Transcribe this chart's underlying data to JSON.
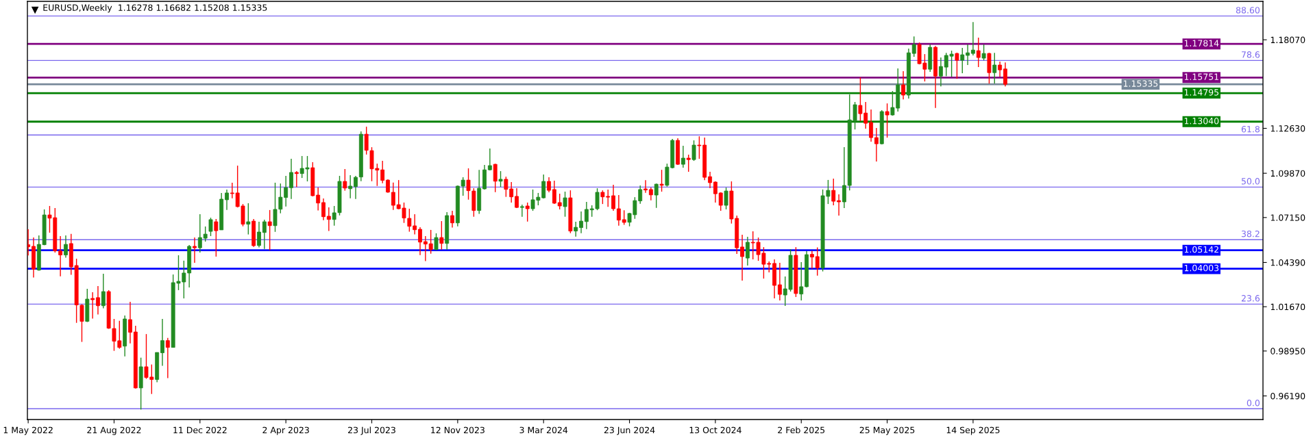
{
  "chart_data": {
    "type": "candlestick",
    "title": "EURUSD,Weekly  1.16278 1.16682 1.15208 1.15335",
    "x": [
      "2022-05-01",
      "2022-05-08",
      "2022-05-15",
      "2022-05-22",
      "2022-05-29",
      "2022-06-05",
      "2022-06-12",
      "2022-06-19",
      "2022-06-26",
      "2022-07-03",
      "2022-07-10",
      "2022-07-17",
      "2022-07-24",
      "2022-07-31",
      "2022-08-07",
      "2022-08-14",
      "2022-08-21",
      "2022-08-28",
      "2022-09-04",
      "2022-09-11",
      "2022-09-18",
      "2022-09-25",
      "2022-10-02",
      "2022-10-09",
      "2022-10-16",
      "2022-10-23",
      "2022-10-30",
      "2022-11-06",
      "2022-11-13",
      "2022-11-20",
      "2022-11-27",
      "2022-12-04",
      "2022-12-11",
      "2022-12-18",
      "2022-12-25",
      "2023-01-01",
      "2023-01-08",
      "2023-01-15",
      "2023-01-22",
      "2023-01-29",
      "2023-02-05",
      "2023-02-12",
      "2023-02-19",
      "2023-02-26",
      "2023-03-05",
      "2023-03-12",
      "2023-03-19",
      "2023-03-26",
      "2023-04-02",
      "2023-04-09",
      "2023-04-16",
      "2023-04-23",
      "2023-04-30",
      "2023-05-07",
      "2023-05-14",
      "2023-05-21",
      "2023-05-28",
      "2023-06-04",
      "2023-06-11",
      "2023-06-18",
      "2023-06-25",
      "2023-07-02",
      "2023-07-09",
      "2023-07-16",
      "2023-07-23",
      "2023-07-30",
      "2023-08-06",
      "2023-08-13",
      "2023-08-20",
      "2023-08-27",
      "2023-09-03",
      "2023-09-10",
      "2023-09-17",
      "2023-09-24",
      "2023-10-01",
      "2023-10-08",
      "2023-10-15",
      "2023-10-22",
      "2023-10-29",
      "2023-11-05",
      "2023-11-12",
      "2023-11-19",
      "2023-11-26",
      "2023-12-03",
      "2023-12-10",
      "2023-12-17",
      "2023-12-24",
      "2023-12-31",
      "2024-01-07",
      "2024-01-14",
      "2024-01-21",
      "2024-01-28",
      "2024-02-04",
      "2024-02-11",
      "2024-02-18",
      "2024-02-25",
      "2024-03-03",
      "2024-03-10",
      "2024-03-17",
      "2024-03-24",
      "2024-03-31",
      "2024-04-07",
      "2024-04-14",
      "2024-04-21",
      "2024-04-28",
      "2024-05-05",
      "2024-05-12",
      "2024-05-19",
      "2024-05-26",
      "2024-06-02",
      "2024-06-09",
      "2024-06-16",
      "2024-06-23",
      "2024-06-30",
      "2024-07-07",
      "2024-07-14",
      "2024-07-21",
      "2024-07-28",
      "2024-08-04",
      "2024-08-11",
      "2024-08-18",
      "2024-08-25",
      "2024-09-01",
      "2024-09-08",
      "2024-09-15",
      "2024-09-22",
      "2024-09-29",
      "2024-10-06",
      "2024-10-13",
      "2024-10-20",
      "2024-10-27",
      "2024-11-03",
      "2024-11-10",
      "2024-11-17",
      "2024-11-24",
      "2024-12-01",
      "2024-12-08",
      "2024-12-15",
      "2024-12-22",
      "2024-12-29",
      "2025-01-05",
      "2025-01-12",
      "2025-01-19",
      "2025-01-26",
      "2025-02-02",
      "2025-02-09",
      "2025-02-16",
      "2025-02-23",
      "2025-03-02",
      "2025-03-09",
      "2025-03-16",
      "2025-03-23",
      "2025-03-30",
      "2025-04-06",
      "2025-04-13",
      "2025-04-20",
      "2025-04-27",
      "2025-05-04",
      "2025-05-11",
      "2025-05-18",
      "2025-05-25",
      "2025-06-01",
      "2025-06-08",
      "2025-06-15",
      "2025-06-22",
      "2025-06-29",
      "2025-07-06",
      "2025-07-13",
      "2025-07-20",
      "2025-07-27",
      "2025-08-03",
      "2025-08-10",
      "2025-08-17",
      "2025-08-24",
      "2025-08-31",
      "2025-09-07",
      "2025-09-14",
      "2025-09-21",
      "2025-09-28",
      "2025-10-05",
      "2025-10-12",
      "2025-10-19",
      "2025-10-26"
    ],
    "ohlc": [
      [
        1.0548,
        1.0643,
        1.0482,
        1.0535
      ],
      [
        1.0538,
        1.0592,
        1.0346,
        1.0398
      ],
      [
        1.0392,
        1.0605,
        1.0388,
        1.055
      ],
      [
        1.0548,
        1.0765,
        1.0545,
        1.0731
      ],
      [
        1.0731,
        1.0786,
        1.0622,
        1.0711
      ],
      [
        1.0714,
        1.0773,
        1.05,
        1.051
      ],
      [
        1.051,
        1.0601,
        1.0354,
        1.0485
      ],
      [
        1.0485,
        1.0605,
        1.0468,
        1.055
      ],
      [
        1.0555,
        1.0614,
        1.0363,
        1.0412
      ],
      [
        1.042,
        1.0462,
        1.0068,
        1.0178
      ],
      [
        1.0176,
        1.0182,
        0.9951,
        1.0077
      ],
      [
        1.0077,
        1.0277,
        1.0073,
        1.0214
      ],
      [
        1.0218,
        1.0256,
        1.0094,
        1.021
      ],
      [
        1.0223,
        1.0294,
        1.0119,
        1.0173
      ],
      [
        1.0173,
        1.037,
        1.0157,
        1.026
      ],
      [
        1.026,
        1.0269,
        1.0031,
        1.0035
      ],
      [
        1.0033,
        1.0092,
        0.9896,
        0.9955
      ],
      [
        0.9958,
        1.008,
        0.9909,
        0.9917
      ],
      [
        0.9925,
        1.0113,
        0.9862,
        1.0092
      ],
      [
        1.0088,
        1.0197,
        0.9942,
        1.001
      ],
      [
        1.0012,
        1.005,
        0.9664,
        0.9668
      ],
      [
        0.9668,
        0.9854,
        0.9535,
        0.9798
      ],
      [
        0.9798,
        0.9999,
        0.9724,
        0.9732
      ],
      [
        0.9735,
        0.9812,
        0.9631,
        0.972
      ],
      [
        0.972,
        0.9886,
        0.9703,
        0.9886
      ],
      [
        0.9884,
        1.0092,
        0.9804,
        0.9959
      ],
      [
        0.9959,
        0.9975,
        0.9728,
        0.9917
      ],
      [
        0.9917,
        1.0365,
        0.9917,
        1.0315
      ],
      [
        1.0311,
        1.0483,
        1.0269,
        1.0323
      ],
      [
        1.0319,
        1.045,
        1.0218,
        1.0374
      ],
      [
        1.0374,
        1.0546,
        1.0285,
        1.0538
      ],
      [
        1.0538,
        1.0592,
        1.0437,
        1.0529
      ],
      [
        1.0529,
        1.0735,
        1.05,
        1.0592
      ],
      [
        1.0588,
        1.066,
        1.0567,
        1.0613
      ],
      [
        1.063,
        1.0714,
        1.0601,
        1.0702
      ],
      [
        1.0689,
        1.0706,
        1.0475,
        1.0634
      ],
      [
        1.0639,
        1.0866,
        1.0639,
        1.0828
      ],
      [
        1.0824,
        1.0887,
        1.0762,
        1.0866
      ],
      [
        1.0866,
        1.0929,
        1.0833,
        1.0862
      ],
      [
        1.0866,
        1.1034,
        1.0777,
        1.0782
      ],
      [
        1.0786,
        1.0798,
        1.0661,
        1.0674
      ],
      [
        1.0674,
        1.0803,
        1.0611,
        1.0689
      ],
      [
        1.0693,
        1.0706,
        1.0535,
        1.0542
      ],
      [
        1.0543,
        1.0689,
        1.0531,
        1.0626
      ],
      [
        1.0623,
        1.0702,
        1.0522,
        1.0689
      ],
      [
        1.0689,
        1.0761,
        1.0514,
        1.0665
      ],
      [
        1.0665,
        1.0929,
        1.0627,
        1.0765
      ],
      [
        1.0766,
        1.0924,
        1.0741,
        1.084
      ],
      [
        1.0838,
        1.0971,
        1.0783,
        1.0899
      ],
      [
        1.0898,
        1.1076,
        1.0829,
        1.0992
      ],
      [
        1.0992,
        1.1,
        1.0903,
        1.0985
      ],
      [
        1.0985,
        1.1093,
        1.0958,
        1.1017
      ],
      [
        1.1013,
        1.1093,
        1.0937,
        1.1021
      ],
      [
        1.1021,
        1.1055,
        1.0845,
        1.0849
      ],
      [
        1.0853,
        1.0899,
        1.0758,
        1.0804
      ],
      [
        1.0807,
        1.0832,
        1.0699,
        1.072
      ],
      [
        1.0723,
        1.0777,
        1.0632,
        1.0703
      ],
      [
        1.0703,
        1.0786,
        1.0665,
        1.0744
      ],
      [
        1.0745,
        1.0971,
        1.0728,
        1.0937
      ],
      [
        1.0937,
        1.1013,
        1.088,
        1.0896
      ],
      [
        1.0892,
        1.0975,
        1.0833,
        1.0908
      ],
      [
        1.0905,
        1.0971,
        1.0829,
        1.0962
      ],
      [
        1.0964,
        1.1244,
        1.0938,
        1.1227
      ],
      [
        1.1227,
        1.1273,
        1.1102,
        1.1128
      ],
      [
        1.1126,
        1.1147,
        1.0938,
        1.1014
      ],
      [
        1.1017,
        1.1046,
        1.0909,
        1.1006
      ],
      [
        1.1008,
        1.1063,
        1.0926,
        1.0943
      ],
      [
        1.0945,
        1.095,
        1.0867,
        1.0871
      ],
      [
        1.087,
        1.093,
        1.0762,
        1.079
      ],
      [
        1.0794,
        1.0945,
        1.0766,
        1.0769
      ],
      [
        1.0773,
        1.0807,
        1.0682,
        1.0712
      ],
      [
        1.071,
        1.0769,
        1.0628,
        1.0661
      ],
      [
        1.0664,
        1.0735,
        1.0611,
        1.064
      ],
      [
        1.0643,
        1.0655,
        1.0484,
        1.0564
      ],
      [
        1.0567,
        1.0601,
        1.0447,
        1.0552
      ],
      [
        1.0554,
        1.0639,
        1.0493,
        1.0518
      ],
      [
        1.0518,
        1.0618,
        1.0514,
        1.0592
      ],
      [
        1.0592,
        1.0693,
        1.0518,
        1.0556
      ],
      [
        1.0556,
        1.0748,
        1.0518,
        1.0727
      ],
      [
        1.0727,
        1.0756,
        1.0653,
        1.0682
      ],
      [
        1.0682,
        1.0912,
        1.0661,
        1.0908
      ],
      [
        1.0908,
        1.0962,
        1.0849,
        1.0945
      ],
      [
        1.0945,
        1.1017,
        1.0825,
        1.088
      ],
      [
        1.0878,
        1.0895,
        1.072,
        1.0758
      ],
      [
        1.0758,
        1.1008,
        1.0737,
        1.0895
      ],
      [
        1.0891,
        1.1038,
        1.0887,
        1.1008
      ],
      [
        1.1008,
        1.1139,
        1.1004,
        1.1034
      ],
      [
        1.1042,
        1.1045,
        1.0871,
        1.0938
      ],
      [
        1.0938,
        1.1,
        1.0903,
        1.095
      ],
      [
        1.095,
        1.0966,
        1.0842,
        1.0888
      ],
      [
        1.0891,
        1.0933,
        1.0807,
        1.0842
      ],
      [
        1.0845,
        1.0895,
        1.0773,
        1.0777
      ],
      [
        1.0777,
        1.0794,
        1.072,
        1.0782
      ],
      [
        1.0786,
        1.0807,
        1.069,
        1.0769
      ],
      [
        1.0769,
        1.0887,
        1.0756,
        1.0824
      ],
      [
        1.0821,
        1.0866,
        1.079,
        1.084
      ],
      [
        1.0836,
        1.0979,
        1.0832,
        1.0937
      ],
      [
        1.0937,
        1.0962,
        1.087,
        1.0882
      ],
      [
        1.0887,
        1.0941,
        1.0798,
        1.0803
      ],
      [
        1.0807,
        1.0861,
        1.0765,
        1.0786
      ],
      [
        1.0782,
        1.0874,
        1.072,
        1.0836
      ],
      [
        1.0836,
        1.0882,
        1.0619,
        1.0632
      ],
      [
        1.0632,
        1.0689,
        1.0598,
        1.0655
      ],
      [
        1.0653,
        1.0752,
        1.0619,
        1.0693
      ],
      [
        1.069,
        1.0811,
        1.0644,
        1.0765
      ],
      [
        1.0762,
        1.079,
        1.072,
        1.0769
      ],
      [
        1.0769,
        1.0895,
        1.076,
        1.087
      ],
      [
        1.087,
        1.0882,
        1.0798,
        1.0842
      ],
      [
        1.0845,
        1.0887,
        1.0781,
        1.084
      ],
      [
        1.0849,
        1.0916,
        1.0756,
        1.0769
      ],
      [
        1.0769,
        1.0853,
        1.0665,
        1.0699
      ],
      [
        1.0702,
        1.076,
        1.067,
        1.0685
      ],
      [
        1.0686,
        1.0744,
        1.0661,
        1.074
      ],
      [
        1.0732,
        1.084,
        1.0707,
        1.0819
      ],
      [
        1.0817,
        1.0912,
        1.08,
        1.0887
      ],
      [
        1.0891,
        1.0945,
        1.0867,
        1.0884
      ],
      [
        1.0887,
        1.0899,
        1.0821,
        1.0854
      ],
      [
        1.0853,
        1.0924,
        1.0774,
        1.092
      ],
      [
        1.092,
        1.1008,
        1.0874,
        1.0913
      ],
      [
        1.0913,
        1.1046,
        1.0905,
        1.1025
      ],
      [
        1.1021,
        1.1198,
        1.1017,
        1.1189
      ],
      [
        1.1189,
        1.1202,
        1.1038,
        1.1042
      ],
      [
        1.1042,
        1.1156,
        1.1021,
        1.108
      ],
      [
        1.108,
        1.1101,
        1.0996,
        1.1071
      ],
      [
        1.1071,
        1.1189,
        1.1063,
        1.116
      ],
      [
        1.116,
        1.1214,
        1.1076,
        1.1156
      ],
      [
        1.116,
        1.1206,
        1.0945,
        1.0962
      ],
      [
        1.0966,
        1.0996,
        1.0895,
        1.0929
      ],
      [
        1.0933,
        1.0937,
        1.0807,
        1.0861
      ],
      [
        1.0866,
        1.087,
        1.0756,
        1.079
      ],
      [
        1.079,
        1.0899,
        1.0765,
        1.0878
      ],
      [
        1.0878,
        1.0937,
        1.0678,
        1.0706
      ],
      [
        1.071,
        1.0727,
        1.0491,
        1.0529
      ],
      [
        1.0534,
        1.0609,
        1.0328,
        1.0475
      ],
      [
        1.0466,
        1.0597,
        1.042,
        1.0563
      ],
      [
        1.0563,
        1.063,
        1.0458,
        1.0559
      ],
      [
        1.0563,
        1.0592,
        1.0449,
        1.0487
      ],
      [
        1.0496,
        1.0533,
        1.034,
        1.0428
      ],
      [
        1.0433,
        1.0445,
        1.0378,
        1.0428
      ],
      [
        1.0433,
        1.0458,
        1.0218,
        1.0298
      ],
      [
        1.0302,
        1.0437,
        1.0206,
        1.0243
      ],
      [
        1.0239,
        1.0353,
        1.0172,
        1.0277
      ],
      [
        1.0273,
        1.0521,
        1.026,
        1.0483
      ],
      [
        1.0483,
        1.0533,
        1.0227,
        1.0248
      ],
      [
        1.0245,
        1.0441,
        1.0206,
        1.029
      ],
      [
        1.029,
        1.0508,
        1.0285,
        1.0487
      ],
      [
        1.0489,
        1.051,
        1.04,
        1.0472
      ],
      [
        1.0475,
        1.0531,
        1.0358,
        1.0405
      ],
      [
        1.0405,
        1.0887,
        1.0384,
        1.0849
      ],
      [
        1.0845,
        1.0946,
        1.0798,
        1.0882
      ],
      [
        1.0882,
        1.0954,
        1.079,
        1.0815
      ],
      [
        1.0819,
        1.0857,
        1.0727,
        1.0811
      ],
      [
        1.0811,
        1.1147,
        1.0773,
        1.0912
      ],
      [
        1.0912,
        1.1471,
        1.0882,
        1.1315
      ],
      [
        1.1311,
        1.1425,
        1.1256,
        1.1408
      ],
      [
        1.1404,
        1.1576,
        1.1307,
        1.1353
      ],
      [
        1.1357,
        1.1425,
        1.1261,
        1.1294
      ],
      [
        1.1299,
        1.1379,
        1.1181,
        1.1206
      ],
      [
        1.1206,
        1.1265,
        1.1059,
        1.1168
      ],
      [
        1.1168,
        1.1374,
        1.1164,
        1.1366
      ],
      [
        1.1366,
        1.1416,
        1.1206,
        1.1345
      ],
      [
        1.1345,
        1.1492,
        1.1341,
        1.1391
      ],
      [
        1.1387,
        1.1631,
        1.1366,
        1.153
      ],
      [
        1.153,
        1.1614,
        1.1441,
        1.1467
      ],
      [
        1.1467,
        1.1753,
        1.1446,
        1.1727
      ],
      [
        1.1723,
        1.1828,
        1.1702,
        1.1778
      ],
      [
        1.1778,
        1.179,
        1.1656,
        1.166
      ],
      [
        1.1664,
        1.1719,
        1.1551,
        1.1626
      ],
      [
        1.1626,
        1.1778,
        1.161,
        1.1761
      ],
      [
        1.1761,
        1.1769,
        1.1388,
        1.1584
      ],
      [
        1.1584,
        1.1698,
        1.1521,
        1.1643
      ],
      [
        1.1639,
        1.1727,
        1.1584,
        1.1711
      ],
      [
        1.1706,
        1.174,
        1.158,
        1.1719
      ],
      [
        1.1723,
        1.1728,
        1.1567,
        1.1681
      ],
      [
        1.1681,
        1.1757,
        1.1601,
        1.1715
      ],
      [
        1.1711,
        1.1778,
        1.1652,
        1.1727
      ],
      [
        1.1723,
        1.1916,
        1.1711,
        1.1744
      ],
      [
        1.174,
        1.182,
        1.1639,
        1.1698
      ],
      [
        1.1694,
        1.1778,
        1.1681,
        1.1723
      ],
      [
        1.1723,
        1.1727,
        1.1538,
        1.1605
      ],
      [
        1.1605,
        1.1727,
        1.1538,
        1.1652
      ],
      [
        1.1652,
        1.1673,
        1.158,
        1.1622
      ],
      [
        1.16278,
        1.16682,
        1.15208,
        1.15335
      ]
    ],
    "colors": [
      "#ff0000",
      "#ff0000",
      "#228b22",
      "#228b22",
      "#ff0000",
      "#ff0000",
      "#ff0000",
      "#228b22",
      "#ff0000",
      "#ff0000",
      "#ff0000",
      "#228b22",
      "#ff0000",
      "#ff0000",
      "#228b22",
      "#ff0000",
      "#ff0000",
      "#ff0000",
      "#228b22",
      "#ff0000",
      "#ff0000",
      "#228b22",
      "#ff0000",
      "#ff0000",
      "#228b22",
      "#228b22",
      "#ff0000",
      "#228b22",
      "#228b22",
      "#228b22",
      "#228b22",
      "#ff0000",
      "#228b22",
      "#228b22",
      "#228b22",
      "#ff0000",
      "#228b22",
      "#228b22",
      "#ff0000",
      "#ff0000",
      "#ff0000",
      "#228b22",
      "#ff0000",
      "#228b22",
      "#228b22",
      "#ff0000",
      "#228b22",
      "#228b22",
      "#228b22",
      "#228b22",
      "#ff0000",
      "#228b22",
      "#228b22",
      "#ff0000",
      "#ff0000",
      "#ff0000",
      "#ff0000",
      "#228b22",
      "#228b22",
      "#ff0000",
      "#228b22",
      "#228b22",
      "#228b22",
      "#ff0000",
      "#ff0000",
      "#ff0000",
      "#ff0000",
      "#ff0000",
      "#ff0000",
      "#ff0000",
      "#ff0000",
      "#ff0000",
      "#ff0000",
      "#ff0000",
      "#ff0000",
      "#ff0000",
      "#228b22",
      "#ff0000",
      "#228b22",
      "#ff0000",
      "#228b22",
      "#228b22",
      "#ff0000",
      "#ff0000",
      "#228b22",
      "#228b22",
      "#228b22",
      "#ff0000",
      "#228b22",
      "#ff0000",
      "#ff0000",
      "#ff0000",
      "#228b22",
      "#ff0000",
      "#228b22",
      "#228b22",
      "#228b22",
      "#ff0000",
      "#ff0000",
      "#ff0000",
      "#228b22",
      "#ff0000",
      "#228b22",
      "#228b22",
      "#228b22",
      "#228b22",
      "#228b22",
      "#ff0000",
      "#ff0000",
      "#ff0000",
      "#ff0000",
      "#ff0000",
      "#228b22",
      "#228b22",
      "#228b22",
      "#ff0000",
      "#ff0000",
      "#228b22",
      "#ff0000",
      "#228b22",
      "#228b22",
      "#ff0000",
      "#228b22",
      "#ff0000",
      "#228b22",
      "#ff0000",
      "#ff0000",
      "#ff0000",
      "#ff0000",
      "#ff0000",
      "#228b22",
      "#ff0000",
      "#ff0000",
      "#ff0000",
      "#228b22",
      "#ff0000",
      "#ff0000",
      "#ff0000",
      "#ff0000",
      "#ff0000",
      "#ff0000",
      "#228b22",
      "#228b22",
      "#ff0000",
      "#228b22",
      "#228b22",
      "#ff0000",
      "#ff0000",
      "#228b22",
      "#228b22",
      "#ff0000",
      "#ff0000",
      "#228b22",
      "#228b22",
      "#228b22",
      "#ff0000",
      "#ff0000",
      "#ff0000",
      "#ff0000",
      "#228b22",
      "#ff0000",
      "#228b22",
      "#228b22",
      "#ff0000",
      "#228b22",
      "#228b22",
      "#ff0000",
      "#ff0000",
      "#228b22",
      "#ff0000",
      "#228b22",
      "#228b22",
      "#228b22",
      "#ff0000",
      "#228b22",
      "#228b22",
      "#228b22",
      "#ff0000",
      "#228b22",
      "#ff0000",
      "#228b22",
      "#ff0000",
      "#ff0000"
    ],
    "xlim": [
      "2022-04-30",
      "2026-09-27"
    ],
    "ylim": [
      0.9474,
      1.2043
    ],
    "xticks": [
      {
        "value": "2022-05-01",
        "label": "1 May 2022"
      },
      {
        "value": "2022-08-21",
        "label": "21 Aug 2022"
      },
      {
        "value": "2022-12-11",
        "label": "11 Dec 2022"
      },
      {
        "value": "2023-04-02",
        "label": "2 Apr 2023"
      },
      {
        "value": "2023-07-23",
        "label": "23 Jul 2023"
      },
      {
        "value": "2023-11-12",
        "label": "12 Nov 2023"
      },
      {
        "value": "2024-03-03",
        "label": "3 Mar 2024"
      },
      {
        "value": "2024-06-23",
        "label": "23 Jun 2024"
      },
      {
        "value": "2024-10-13",
        "label": "13 Oct 2024"
      },
      {
        "value": "2025-02-02",
        "label": "2 Feb 2025"
      },
      {
        "value": "2025-05-25",
        "label": "25 May 2025"
      },
      {
        "value": "2025-09-14",
        "label": "14 Sep 2025"
      }
    ],
    "yticks": [
      {
        "value": 1.1807,
        "label": "1.18070"
      },
      {
        "value": 1.1263,
        "label": "1.12630"
      },
      {
        "value": 1.0987,
        "label": "1.09870"
      },
      {
        "value": 1.0715,
        "label": "1.07150"
      },
      {
        "value": 1.0439,
        "label": "1.04390"
      },
      {
        "value": 1.0167,
        "label": "1.01670"
      },
      {
        "value": 0.9895,
        "label": "0.98950"
      },
      {
        "value": 0.9619,
        "label": "0.96190"
      }
    ],
    "ref_lines": [
      {
        "axis": "y",
        "value": 1.1953,
        "color": "#7b68ee"
      },
      {
        "axis": "y",
        "value": 1.168,
        "color": "#7b68ee"
      },
      {
        "axis": "y",
        "value": 1.1222,
        "color": "#7b68ee"
      },
      {
        "axis": "y",
        "value": 1.0902,
        "color": "#7b68ee"
      },
      {
        "axis": "y",
        "value": 1.0579,
        "color": "#7b68ee"
      },
      {
        "axis": "y",
        "value": 1.0183,
        "color": "#7b68ee"
      },
      {
        "axis": "y",
        "value": 0.954,
        "color": "#7b68ee"
      },
      {
        "axis": "y",
        "value": 1.17814,
        "label": "1.17814",
        "color": "#800080"
      },
      {
        "axis": "y",
        "value": 1.15751,
        "label": "1.15751",
        "color": "#800080"
      },
      {
        "axis": "y",
        "value": 1.15335,
        "label": "1.15335",
        "color": "#778899"
      },
      {
        "axis": "y",
        "value": 1.14795,
        "label": "1.14795",
        "color": "#008000"
      },
      {
        "axis": "y",
        "value": 1.1304,
        "label": "1.13040",
        "color": "#008000"
      },
      {
        "axis": "y",
        "value": 1.05142,
        "label": "1.05142",
        "color": "#0000ff"
      },
      {
        "axis": "y",
        "value": 1.04003,
        "label": "1.04003",
        "color": "#0000ff"
      }
    ],
    "annotations": [
      {
        "text": "88.60",
        "x": "2026-09-27",
        "y": 1.1953
      },
      {
        "text": "78.6",
        "x": "2026-09-27",
        "y": 1.168
      },
      {
        "text": "61.8",
        "x": "2026-09-27",
        "y": 1.1222
      },
      {
        "text": "50.0",
        "x": "2026-09-27",
        "y": 1.0902
      },
      {
        "text": "38.2",
        "x": "2026-09-27",
        "y": 1.0579
      },
      {
        "text": "23.6",
        "x": "2026-09-27",
        "y": 1.0183
      },
      {
        "text": "0.0",
        "x": "2026-09-27",
        "y": 0.954
      }
    ]
  }
}
